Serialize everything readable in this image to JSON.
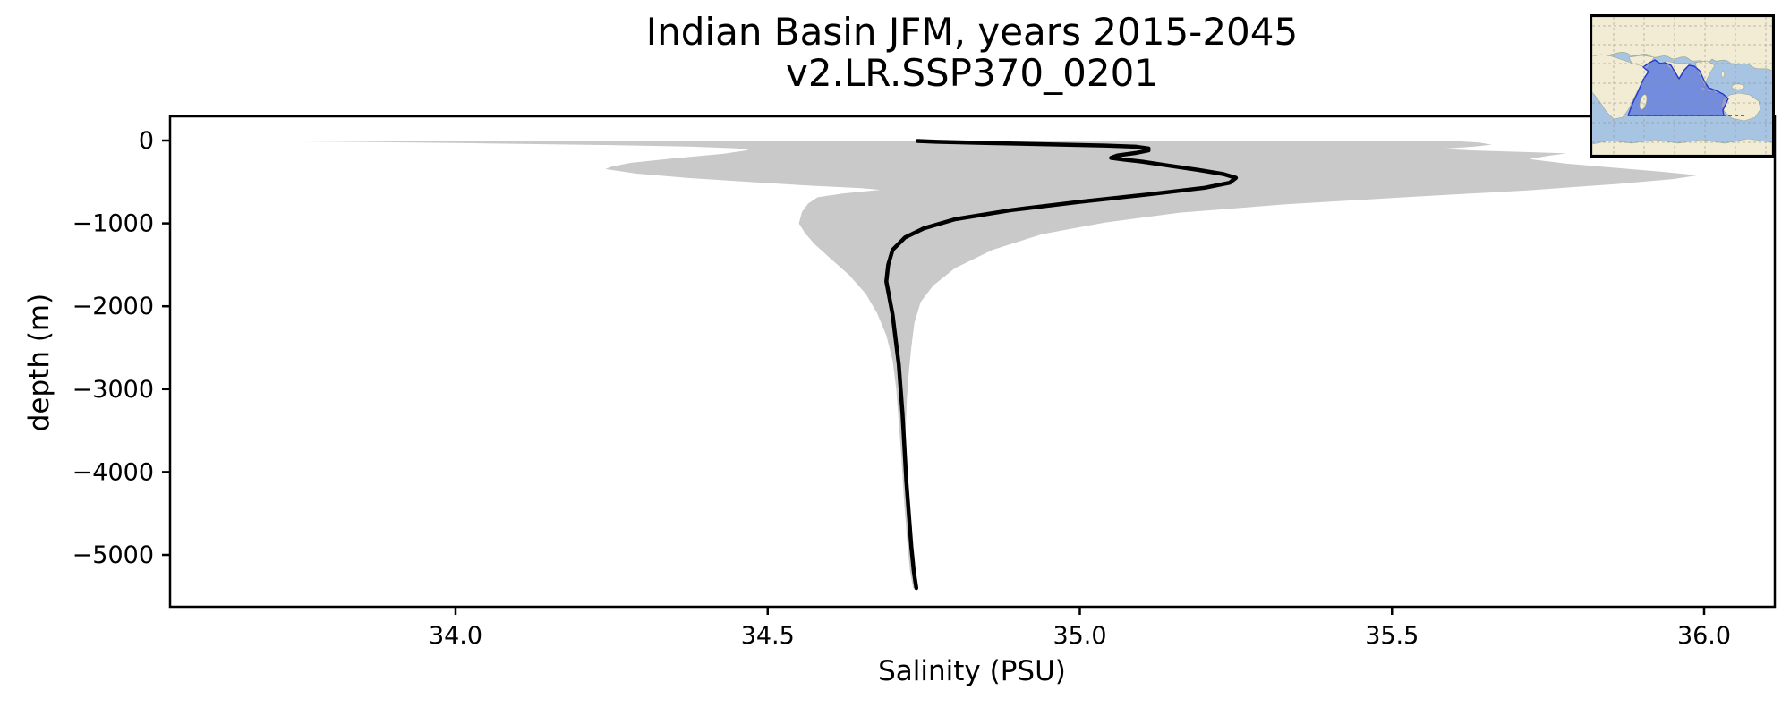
{
  "chart_data": {
    "type": "area",
    "title": "Indian Basin JFM, years 2015-2045",
    "subtitle": "v2.LR.SSP370_0201",
    "xlabel": "Salinity (PSU)",
    "ylabel": "depth (m)",
    "xlim": [
      33.543,
      36.114
    ],
    "ylim_depth": [
      -5626,
      291
    ],
    "grid": false,
    "x_ticks": [
      34.0,
      34.5,
      35.0,
      35.5,
      36.0
    ],
    "x_tick_labels": [
      "34.0",
      "34.5",
      "35.0",
      "35.5",
      "36.0"
    ],
    "y_ticks": [
      0,
      -1000,
      -2000,
      -3000,
      -4000,
      -5000
    ],
    "y_tick_labels": [
      "0",
      "−1000",
      "−2000",
      "−3000",
      "−4000",
      "−5000"
    ],
    "series": [
      {
        "name": "min-max envelope",
        "kind": "band",
        "color": "#c9c9c9",
        "min": [
          [
            33.66,
            -5
          ],
          [
            33.82,
            -15
          ],
          [
            34.05,
            -35
          ],
          [
            34.25,
            -55
          ],
          [
            34.38,
            -75
          ],
          [
            34.45,
            -95
          ],
          [
            34.47,
            -115
          ],
          [
            34.43,
            -160
          ],
          [
            34.35,
            -215
          ],
          [
            34.28,
            -270
          ],
          [
            34.25,
            -315
          ],
          [
            34.24,
            -345
          ],
          [
            34.29,
            -400
          ],
          [
            34.37,
            -450
          ],
          [
            34.47,
            -500
          ],
          [
            34.57,
            -545
          ],
          [
            34.65,
            -575
          ],
          [
            34.68,
            -595
          ],
          [
            34.62,
            -640
          ],
          [
            34.58,
            -685
          ],
          [
            34.565,
            -760
          ],
          [
            34.555,
            -860
          ],
          [
            34.55,
            -1000
          ],
          [
            34.56,
            -1120
          ],
          [
            34.575,
            -1250
          ],
          [
            34.6,
            -1420
          ],
          [
            34.63,
            -1620
          ],
          [
            34.657,
            -1850
          ],
          [
            34.675,
            -2080
          ],
          [
            34.69,
            -2350
          ],
          [
            34.7,
            -2650
          ],
          [
            34.706,
            -3000
          ],
          [
            34.71,
            -3400
          ],
          [
            34.714,
            -3800
          ],
          [
            34.718,
            -4300
          ],
          [
            34.723,
            -4800
          ],
          [
            34.728,
            -5200
          ],
          [
            34.733,
            -5400
          ]
        ],
        "max": [
          [
            35.6,
            -5
          ],
          [
            35.64,
            -25
          ],
          [
            35.66,
            -50
          ],
          [
            35.63,
            -75
          ],
          [
            35.58,
            -100
          ],
          [
            35.63,
            -120
          ],
          [
            35.72,
            -140
          ],
          [
            35.78,
            -155
          ],
          [
            35.75,
            -185
          ],
          [
            35.72,
            -225
          ],
          [
            35.78,
            -280
          ],
          [
            35.86,
            -330
          ],
          [
            35.93,
            -375
          ],
          [
            35.99,
            -420
          ],
          [
            35.95,
            -465
          ],
          [
            35.86,
            -525
          ],
          [
            35.72,
            -600
          ],
          [
            35.53,
            -680
          ],
          [
            35.33,
            -770
          ],
          [
            35.16,
            -870
          ],
          [
            35.04,
            -990
          ],
          [
            34.94,
            -1130
          ],
          [
            34.86,
            -1320
          ],
          [
            34.8,
            -1540
          ],
          [
            34.765,
            -1750
          ],
          [
            34.745,
            -1950
          ],
          [
            34.735,
            -2200
          ],
          [
            34.73,
            -2500
          ],
          [
            34.726,
            -2800
          ],
          [
            34.723,
            -3100
          ],
          [
            34.721,
            -3500
          ],
          [
            34.723,
            -3900
          ],
          [
            34.727,
            -4300
          ],
          [
            34.731,
            -4700
          ],
          [
            34.736,
            -5100
          ],
          [
            34.74,
            -5400
          ]
        ]
      },
      {
        "name": "mean profile",
        "kind": "line",
        "color": "#000000",
        "width": 4.5,
        "points": [
          [
            34.74,
            -5
          ],
          [
            34.77,
            -15
          ],
          [
            34.85,
            -30
          ],
          [
            34.95,
            -45
          ],
          [
            35.04,
            -60
          ],
          [
            35.09,
            -75
          ],
          [
            35.11,
            -95
          ],
          [
            35.11,
            -120
          ],
          [
            35.09,
            -150
          ],
          [
            35.06,
            -180
          ],
          [
            35.05,
            -210
          ],
          [
            35.07,
            -230
          ],
          [
            35.1,
            -255
          ],
          [
            35.14,
            -300
          ],
          [
            35.19,
            -355
          ],
          [
            35.23,
            -405
          ],
          [
            35.25,
            -450
          ],
          [
            35.24,
            -510
          ],
          [
            35.2,
            -570
          ],
          [
            35.11,
            -650
          ],
          [
            35.0,
            -740
          ],
          [
            34.89,
            -840
          ],
          [
            34.8,
            -950
          ],
          [
            34.75,
            -1060
          ],
          [
            34.72,
            -1170
          ],
          [
            34.7,
            -1320
          ],
          [
            34.693,
            -1500
          ],
          [
            34.69,
            -1700
          ],
          [
            34.695,
            -1900
          ],
          [
            34.7,
            -2100
          ],
          [
            34.705,
            -2400
          ],
          [
            34.71,
            -2700
          ],
          [
            34.713,
            -3000
          ],
          [
            34.716,
            -3300
          ],
          [
            34.719,
            -3700
          ],
          [
            34.722,
            -4100
          ],
          [
            34.726,
            -4500
          ],
          [
            34.73,
            -4900
          ],
          [
            34.734,
            -5200
          ],
          [
            34.738,
            -5400
          ]
        ]
      }
    ],
    "inset": {
      "description": "world map inset with Indian Ocean basin region highlighted",
      "ocean_color": "#a7c4e2",
      "land_color": "#f1ecd3",
      "highlight_fill": "#4a5fd8",
      "highlight_border": "#2438cc"
    }
  }
}
